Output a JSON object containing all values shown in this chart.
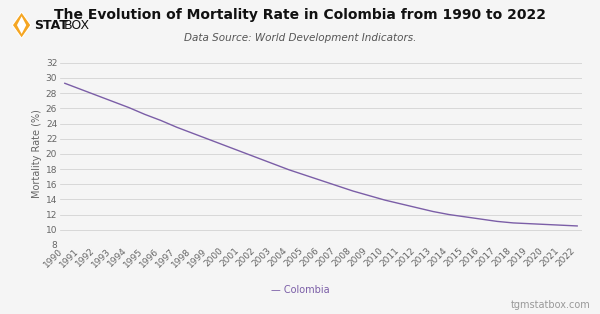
{
  "title": "The Evolution of Mortality Rate in Colombia from 1990 to 2022",
  "subtitle": "Data Source: World Development Indicators.",
  "ylabel": "Mortality Rate (%)",
  "legend_label": "— Colombia",
  "watermark": "tgmstatbox.com",
  "line_color": "#7B5EA7",
  "background_color": "#f5f5f5",
  "grid_color": "#cccccc",
  "years": [
    1990,
    1991,
    1992,
    1993,
    1994,
    1995,
    1996,
    1997,
    1998,
    1999,
    2000,
    2001,
    2002,
    2003,
    2004,
    2005,
    2006,
    2007,
    2008,
    2009,
    2010,
    2011,
    2012,
    2013,
    2014,
    2015,
    2016,
    2017,
    2018,
    2019,
    2020,
    2021,
    2022
  ],
  "values": [
    29.3,
    28.5,
    27.7,
    26.9,
    26.1,
    25.2,
    24.4,
    23.5,
    22.7,
    21.9,
    21.1,
    20.3,
    19.5,
    18.7,
    17.9,
    17.2,
    16.5,
    15.8,
    15.1,
    14.5,
    13.9,
    13.4,
    12.9,
    12.4,
    12.0,
    11.7,
    11.4,
    11.1,
    10.9,
    10.8,
    10.7,
    10.6,
    10.5
  ],
  "ylim": [
    8,
    32
  ],
  "yticks": [
    8,
    10,
    12,
    14,
    16,
    18,
    20,
    22,
    24,
    26,
    28,
    30,
    32
  ],
  "title_fontsize": 10,
  "subtitle_fontsize": 7.5,
  "ylabel_fontsize": 7,
  "tick_fontsize": 6.5,
  "logo_color": "#F5A623",
  "logo_stat_color": "#111111",
  "logo_box_color": "#111111"
}
